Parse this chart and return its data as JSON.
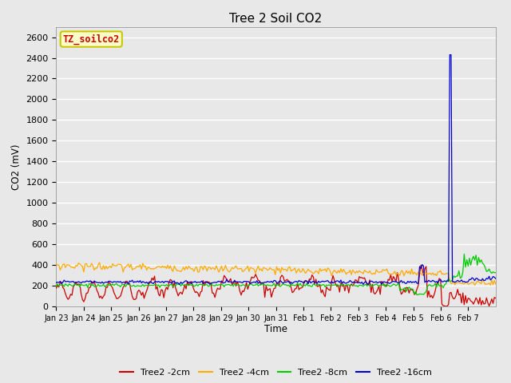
{
  "title": "Tree 2 Soil CO2",
  "ylabel": "CO2 (mV)",
  "xlabel": "Time",
  "ylim": [
    0,
    2700
  ],
  "yticks": [
    0,
    200,
    400,
    600,
    800,
    1000,
    1200,
    1400,
    1600,
    1800,
    2000,
    2200,
    2400,
    2600
  ],
  "legend_label": "TZ_soilco2",
  "legend_bg": "#ffffcc",
  "legend_border": "#c8c800",
  "legend_text_color": "#cc0000",
  "fig_bg": "#e8e8e8",
  "plot_bg": "#e8e8e8",
  "grid_color": "#ffffff",
  "line_colors": {
    "2cm": "#cc0000",
    "4cm": "#ffaa00",
    "8cm": "#00cc00",
    "16cm": "#0000cc"
  },
  "legend_entries": [
    "Tree2 -2cm",
    "Tree2 -4cm",
    "Tree2 -8cm",
    "Tree2 -16cm"
  ],
  "legend_colors": [
    "#cc0000",
    "#ffaa00",
    "#00cc00",
    "#0000cc"
  ],
  "day_labels": [
    "Jan 23",
    "Jan 24",
    "Jan 25",
    "Jan 26",
    "Jan 27",
    "Jan 28",
    "Jan 29",
    "Jan 30",
    "Jan 31",
    "Feb 1",
    "Feb 2",
    "Feb 3",
    "Feb 4",
    "Feb 5",
    "Feb 6",
    "Feb 7"
  ]
}
